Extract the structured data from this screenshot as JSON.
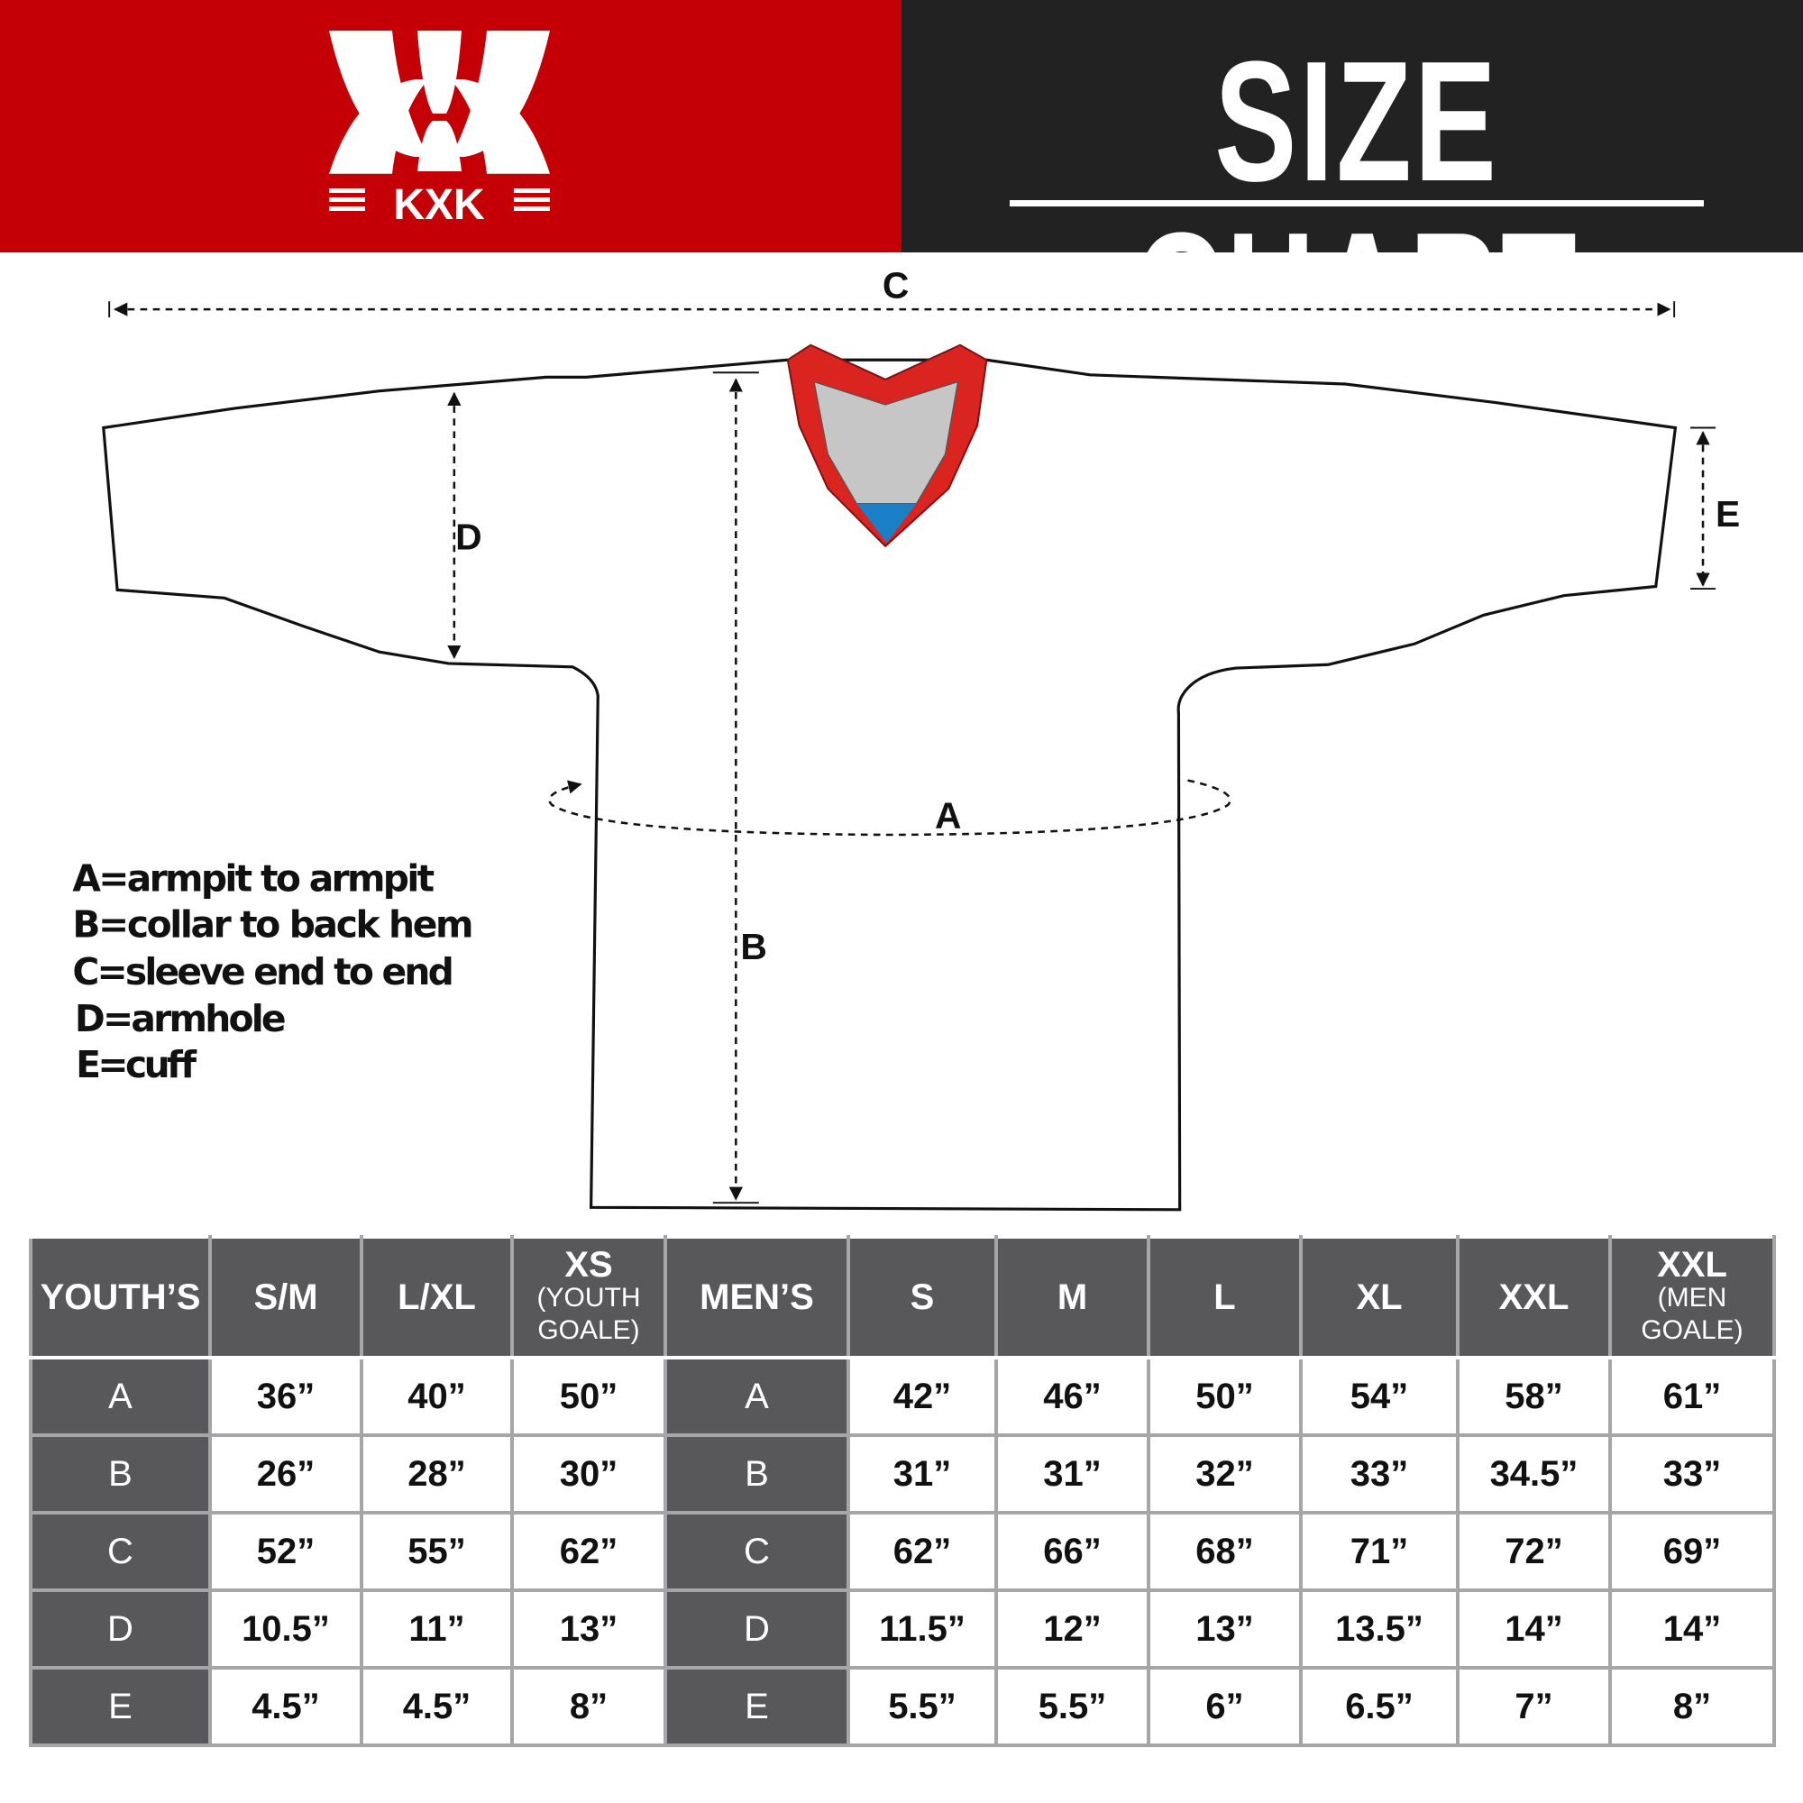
{
  "brand": {
    "logo_text": "KXK",
    "colors": {
      "red": "#c40006",
      "dark": "#222222",
      "table_header": "#58585a",
      "collar_red": "#d9241f",
      "collar_grey": "#c6c6c6",
      "collar_blue": "#1a7fc4"
    }
  },
  "header": {
    "title": "SIZE CHART"
  },
  "diagram": {
    "labels": {
      "a": "A",
      "b": "B",
      "c": "C",
      "d": "D",
      "e": "E"
    },
    "legend": [
      "A=armpit to armpit",
      "B=collar to back hem",
      "C=sleeve end to end",
      "D=armhole",
      "E=cuff"
    ]
  },
  "table": {
    "youth_header": "YOUTH’S",
    "men_header": "MEN’S",
    "youth_sizes": [
      {
        "main": "S/M",
        "sub": ""
      },
      {
        "main": "L/XL",
        "sub": ""
      },
      {
        "main": "XS",
        "sub": "(YOUTH GOALE)"
      }
    ],
    "men_sizes": [
      {
        "main": "S",
        "sub": ""
      },
      {
        "main": "M",
        "sub": ""
      },
      {
        "main": "L",
        "sub": ""
      },
      {
        "main": "XL",
        "sub": ""
      },
      {
        "main": "XXL",
        "sub": ""
      },
      {
        "main": "XXL",
        "sub": "(MEN GOALE)"
      }
    ],
    "rows": [
      {
        "label": "A",
        "youth": [
          "36”",
          "40”",
          "50”"
        ],
        "men": [
          "42”",
          "46”",
          "50”",
          "54”",
          "58”",
          "61”"
        ]
      },
      {
        "label": "B",
        "youth": [
          "26”",
          "28”",
          "30”"
        ],
        "men": [
          "31”",
          "31”",
          "32”",
          "33”",
          "34.5”",
          "33”"
        ]
      },
      {
        "label": "C",
        "youth": [
          "52”",
          "55”",
          "62”"
        ],
        "men": [
          "62”",
          "66”",
          "68”",
          "71”",
          "72”",
          "69”"
        ]
      },
      {
        "label": "D",
        "youth": [
          "10.5”",
          "11”",
          "13”"
        ],
        "men": [
          "11.5”",
          "12”",
          "13”",
          "13.5”",
          "14”",
          "14”"
        ]
      },
      {
        "label": "E",
        "youth": [
          "4.5”",
          "4.5”",
          "8”"
        ],
        "men": [
          "5.5”",
          "5.5”",
          "6”",
          "6.5”",
          "7”",
          "8”"
        ]
      }
    ]
  }
}
